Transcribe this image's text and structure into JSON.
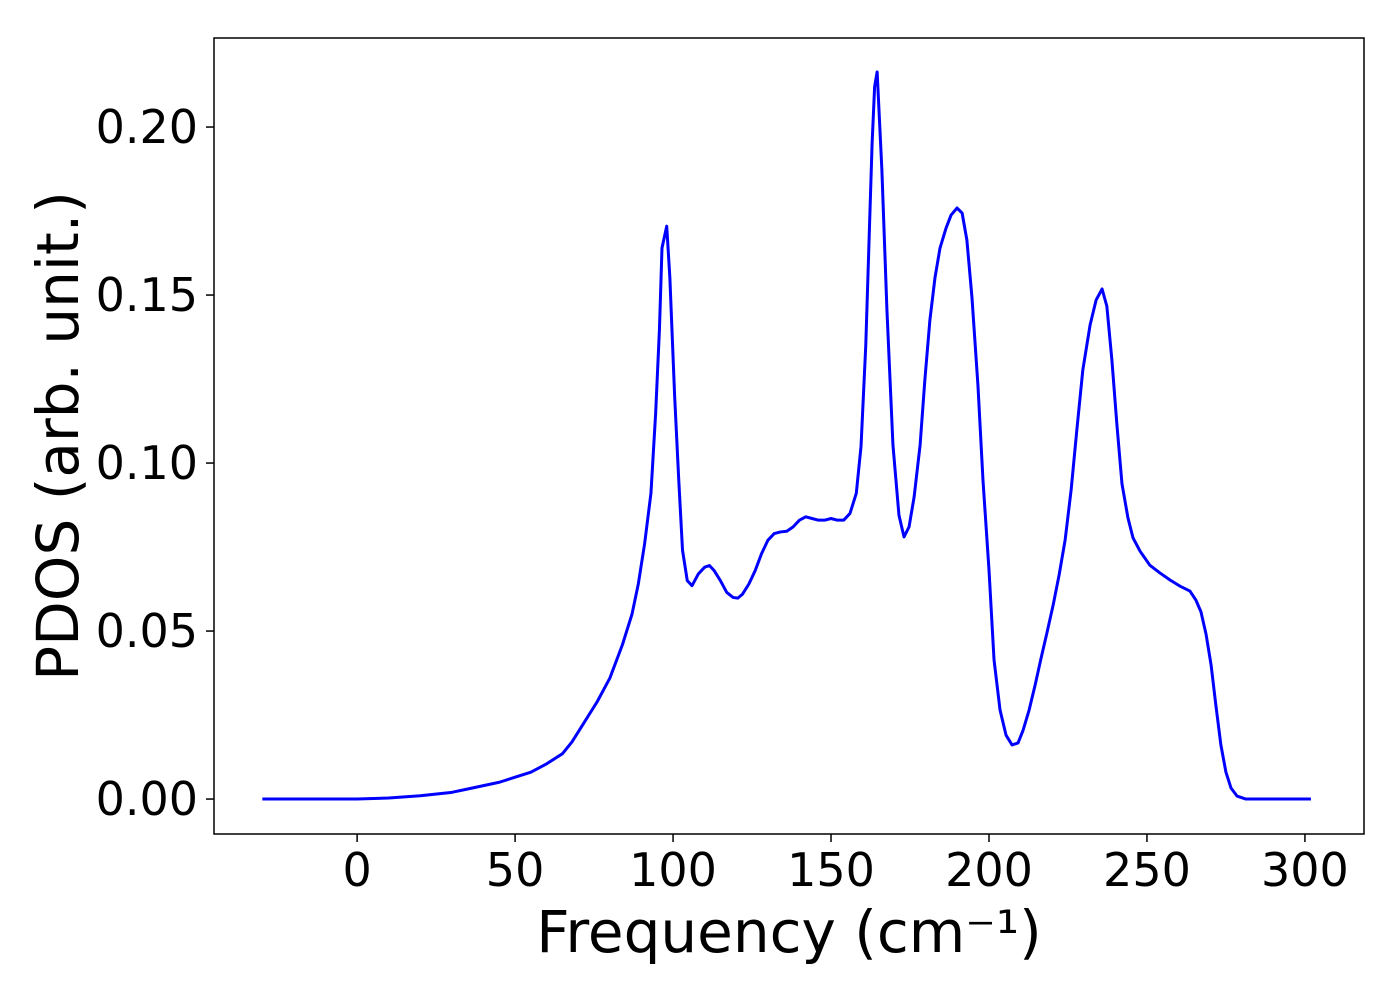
{
  "chart_data": {
    "type": "line",
    "xlabel": "Frequency (cm⁻¹)",
    "ylabel": "PDOS (arb. unit.)",
    "color": "#0000ff",
    "x": [
      -30,
      0,
      10,
      20,
      30,
      35,
      40,
      45,
      50,
      55,
      60,
      65,
      68,
      72,
      76,
      80,
      84,
      87,
      89,
      91,
      93,
      94.5,
      95.7,
      96.5,
      98,
      99,
      100.5,
      101.8,
      103,
      104.5,
      106,
      108,
      110,
      111.5,
      113,
      115,
      117,
      119,
      120.5,
      122,
      124,
      126,
      128,
      130,
      132,
      134,
      136,
      138,
      140,
      142,
      144,
      146,
      148,
      150,
      152,
      154,
      156,
      158,
      159.5,
      161,
      162,
      163,
      163.8,
      164.6,
      166.1,
      167.7,
      169.6,
      171.5,
      173.1,
      174.7,
      176.3,
      178.2,
      179.7,
      181.3,
      182.9,
      184.5,
      186.4,
      188.0,
      189.9,
      191.5,
      193.0,
      194.6,
      196.5,
      198.1,
      200.0,
      201.6,
      203.5,
      205.4,
      207.3,
      209.2,
      210.8,
      212.7,
      214.6,
      216.5,
      218.4,
      220.3,
      222.2,
      224.1,
      226.0,
      227.8,
      229.7,
      232.0,
      233.9,
      235.8,
      237.3,
      238.9,
      240.5,
      242.1,
      244.0,
      245.6,
      247.8,
      250.9,
      254.1,
      257.3,
      260.4,
      263.6,
      265.5,
      267.1,
      268.7,
      270.3,
      271.8,
      273.4,
      275.0,
      276.6,
      278.5,
      281.3,
      301.9
    ],
    "values": [
      0,
      0,
      0.0003,
      0.001,
      0.002,
      0.003,
      0.004,
      0.005,
      0.0065,
      0.008,
      0.0105,
      0.0135,
      0.017,
      0.023,
      0.029,
      0.036,
      0.046,
      0.055,
      0.064,
      0.076,
      0.091,
      0.115,
      0.14,
      0.164,
      0.1705,
      0.155,
      0.12,
      0.095,
      0.074,
      0.065,
      0.0635,
      0.067,
      0.069,
      0.0695,
      0.068,
      0.065,
      0.0615,
      0.06,
      0.0598,
      0.061,
      0.064,
      0.068,
      0.073,
      0.077,
      0.079,
      0.0795,
      0.0797,
      0.081,
      0.083,
      0.084,
      0.0835,
      0.083,
      0.083,
      0.0835,
      0.083,
      0.083,
      0.085,
      0.091,
      0.105,
      0.135,
      0.165,
      0.195,
      0.212,
      0.2164,
      0.1872,
      0.1455,
      0.1054,
      0.0845,
      0.078,
      0.081,
      0.0899,
      0.1054,
      0.1247,
      0.1426,
      0.1551,
      0.164,
      0.1699,
      0.1738,
      0.1759,
      0.1744,
      0.1664,
      0.1494,
      0.1232,
      0.0949,
      0.0682,
      0.0414,
      0.0265,
      0.019,
      0.0161,
      0.0167,
      0.0205,
      0.0265,
      0.0339,
      0.042,
      0.0497,
      0.0577,
      0.0667,
      0.0771,
      0.092,
      0.1098,
      0.1277,
      0.1411,
      0.1485,
      0.1518,
      0.1467,
      0.1307,
      0.1113,
      0.0938,
      0.0836,
      0.0777,
      0.0738,
      0.0696,
      0.0673,
      0.0652,
      0.0634,
      0.0619,
      0.0592,
      0.0557,
      0.0491,
      0.0399,
      0.028,
      0.0161,
      0.008,
      0.0033,
      0.0009,
      0,
      0
    ],
    "xlim": [
      -45.3,
      318.7
    ],
    "ylim": [
      -0.0104,
      0.2265
    ],
    "xticks": [
      0,
      50,
      100,
      150,
      200,
      250,
      300
    ],
    "yticks": [
      {
        "value": 0,
        "label": "0.00"
      },
      {
        "value": 0.05,
        "label": "0.05"
      },
      {
        "value": 0.1,
        "label": "0.10"
      },
      {
        "value": 0.15,
        "label": "0.15"
      },
      {
        "value": 0.2,
        "label": "0.20"
      }
    ]
  }
}
